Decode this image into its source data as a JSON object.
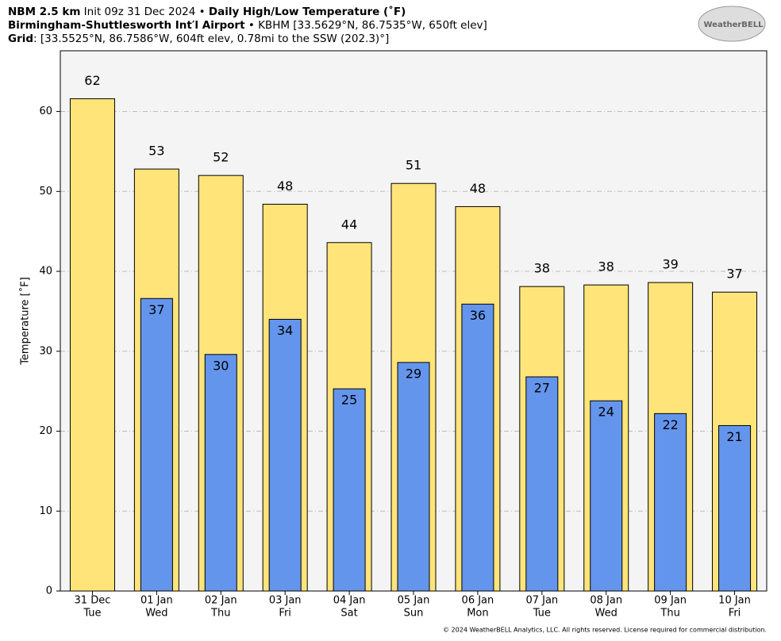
{
  "chart_data": {
    "type": "bar",
    "title_lines": [
      [
        "NBM 2.5 km",
        " Init 09z 31 Dec 2024 • ",
        "Daily High/Low Temperature (˚F)"
      ],
      [
        "Birmingham-Shuttlesworth Int′l Airport",
        " • KBHM [33.5629°N, 86.7535°W, 650ft elev]"
      ],
      [
        "Grid",
        ": [33.5525°N, 86.7586°W, 604ft elev, 0.78mi to the SSW (202.3)°]"
      ]
    ],
    "logo": "WeatherBELL",
    "footer": "© 2024 WeatherBELL Analytics, LLC. All rights reserved. License required for commercial distribution.",
    "y_label": "Temperature [˚F]",
    "categories": [
      "31 Dec",
      "01 Jan",
      "02 Jan",
      "03 Jan",
      "04 Jan",
      "05 Jan",
      "06 Jan",
      "07 Jan",
      "08 Jan",
      "09 Jan",
      "10 Jan"
    ],
    "weekdays": [
      "Tue",
      "Wed",
      "Thu",
      "Fri",
      "Sat",
      "Sun",
      "Mon",
      "Tue",
      "Wed",
      "Thu",
      "Fri"
    ],
    "series": [
      {
        "color": "#ffe47a",
        "values": [
          61.6,
          52.8,
          52.0,
          48.4,
          43.6,
          51.0,
          48.1,
          38.1,
          38.3,
          38.6,
          37.4
        ],
        "value_labels": [
          "62",
          "53",
          "52",
          "48",
          "44",
          "51",
          "48",
          "38",
          "38",
          "39",
          "37"
        ]
      },
      {
        "color": "#6495ed",
        "values": [
          null,
          36.6,
          29.6,
          34.0,
          25.3,
          28.6,
          35.9,
          26.8,
          23.8,
          22.2,
          20.7
        ],
        "value_labels": [
          null,
          "37",
          "30",
          "34",
          "25",
          "29",
          "36",
          "27",
          "24",
          "22",
          "21"
        ]
      }
    ],
    "ylim": [
      0,
      67.6
    ],
    "yticks": [
      0,
      10,
      20,
      30,
      40,
      50,
      60
    ],
    "grid": true
  }
}
